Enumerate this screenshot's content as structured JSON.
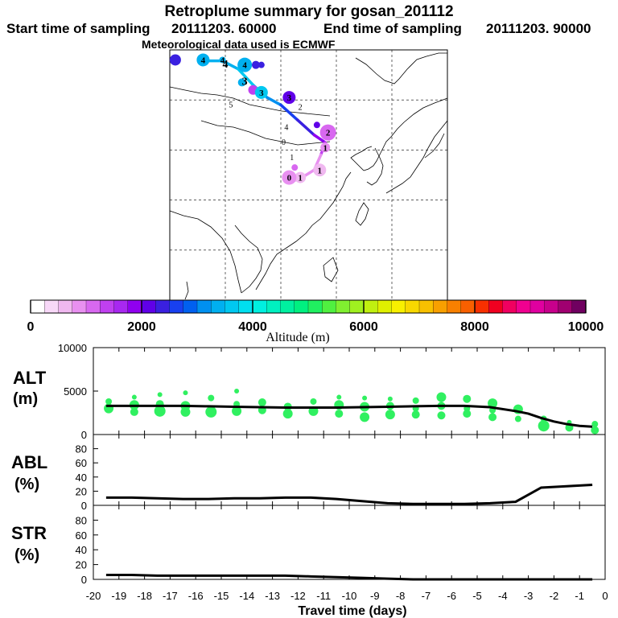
{
  "header": {
    "title": "Retroplume summary for gosan_201112",
    "start_label": "Start time of sampling",
    "start_value": "20111203. 60000",
    "end_label": "End time of sampling",
    "end_value": "20111203. 90000",
    "met_note": "Meteorological data used is ECMWF"
  },
  "colors": {
    "track_high": "#00c8f0",
    "track_mid": "#3a20e0",
    "track_low": "#c040f0",
    "marker_alt": "#30f060",
    "line": "#000000"
  },
  "chart_data": [
    {
      "id": "map",
      "type": "map-trajectory",
      "track": [
        {
          "lon": 101.0,
          "lat": 57.8,
          "alt": 3300
        },
        {
          "lon": 104.5,
          "lat": 57.8,
          "alt": 3200
        },
        {
          "lon": 107.3,
          "lat": 56.2,
          "alt": 3400
        },
        {
          "lon": 110.0,
          "lat": 53.0,
          "alt": 3700
        },
        {
          "lon": 112.5,
          "lat": 50.5,
          "alt": 3600
        },
        {
          "lon": 115.0,
          "lat": 49.0,
          "alt": 2700
        },
        {
          "lon": 118.0,
          "lat": 46.0,
          "alt": 2500
        },
        {
          "lon": 121.0,
          "lat": 43.0,
          "alt": 2200
        },
        {
          "lon": 123.0,
          "lat": 41.5,
          "alt": 1600
        },
        {
          "lon": 122.2,
          "lat": 39.0,
          "alt": 900
        },
        {
          "lon": 121.0,
          "lat": 36.0,
          "alt": 900
        },
        {
          "lon": 118.5,
          "lat": 34.3,
          "alt": 700
        },
        {
          "lon": 116.5,
          "lat": 33.5,
          "alt": 600
        }
      ],
      "markers": [
        {
          "lon": 96.0,
          "lat": 58.0,
          "alt": 2300,
          "size": 7,
          "label": ""
        },
        {
          "lon": 101.0,
          "lat": 58.0,
          "alt": 3300,
          "size": 8,
          "label": "4"
        },
        {
          "lon": 104.5,
          "lat": 58.0,
          "alt": 3300,
          "size": 4,
          "label": "4"
        },
        {
          "lon": 108.5,
          "lat": 57.0,
          "alt": 3300,
          "size": 9,
          "label": "4"
        },
        {
          "lon": 110.5,
          "lat": 57.0,
          "alt": 2400,
          "size": 5,
          "label": ""
        },
        {
          "lon": 111.5,
          "lat": 57.0,
          "alt": 2300,
          "size": 4,
          "label": ""
        },
        {
          "lon": 108.0,
          "lat": 53.5,
          "alt": 3400,
          "size": 5,
          "label": ""
        },
        {
          "lon": 110.0,
          "lat": 52.0,
          "alt": 1300,
          "size": 6,
          "label": ""
        },
        {
          "lon": 111.5,
          "lat": 51.5,
          "alt": 3600,
          "size": 8,
          "label": "3"
        },
        {
          "lon": 116.5,
          "lat": 50.5,
          "alt": 2200,
          "size": 8,
          "label": "3"
        },
        {
          "lon": 121.5,
          "lat": 45.0,
          "alt": 2100,
          "size": 4,
          "label": ""
        },
        {
          "lon": 123.5,
          "lat": 43.5,
          "alt": 1000,
          "size": 10,
          "label": "2"
        },
        {
          "lon": 123.0,
          "lat": 40.5,
          "alt": 900,
          "size": 6,
          "label": "1"
        },
        {
          "lon": 122.0,
          "lat": 36.0,
          "alt": 700,
          "size": 8,
          "label": "1"
        },
        {
          "lon": 118.5,
          "lat": 34.5,
          "alt": 700,
          "size": 7,
          "label": "1"
        },
        {
          "lon": 116.5,
          "lat": 34.5,
          "alt": 800,
          "size": 9,
          "label": "0"
        },
        {
          "lon": 117.5,
          "lat": 36.5,
          "alt": 1200,
          "size": 4,
          "label": ""
        }
      ],
      "labels": [
        {
          "lon": 105.0,
          "lat": 56.5,
          "text": "4",
          "bold": true
        },
        {
          "lon": 108.5,
          "lat": 53.0,
          "text": "3",
          "bold": true
        },
        {
          "lon": 106.0,
          "lat": 48.5,
          "text": "5",
          "bold": false
        },
        {
          "lon": 118.5,
          "lat": 48.0,
          "text": "2",
          "bold": false
        },
        {
          "lon": 116.0,
          "lat": 44.0,
          "text": "4",
          "bold": false
        },
        {
          "lon": 115.5,
          "lat": 41.0,
          "text": "0",
          "bold": false
        },
        {
          "lon": 117.0,
          "lat": 38.0,
          "text": "1",
          "bold": false
        }
      ]
    },
    {
      "id": "colorbar",
      "type": "colorbar",
      "title": "Altitude (m)",
      "range": [
        0,
        10000
      ],
      "tick_labels": [
        "0",
        "2000",
        "4000",
        "6000",
        "8000",
        "10000"
      ],
      "tick_values": [
        0,
        2000,
        4000,
        6000,
        8000,
        10000
      ],
      "colors": [
        "#ffffff",
        "#f8d8f8",
        "#f0b8f0",
        "#e890f0",
        "#d868f0",
        "#c040f0",
        "#a828f0",
        "#9000f0",
        "#6000e8",
        "#3a20e0",
        "#1840f0",
        "#0060f0",
        "#0090f0",
        "#00b0f0",
        "#00c8f0",
        "#00e0f0",
        "#00f0e0",
        "#00f0c0",
        "#00f0a0",
        "#00f080",
        "#20f060",
        "#50f040",
        "#80f030",
        "#a0f020",
        "#c0f010",
        "#e0f000",
        "#f8f000",
        "#f8d800",
        "#f8c000",
        "#f8a000",
        "#f88000",
        "#f86000",
        "#f83000",
        "#f00020",
        "#f00060",
        "#f00090",
        "#e000a0",
        "#c8008c",
        "#a00070",
        "#700060"
      ]
    },
    {
      "id": "alt",
      "type": "line-scatter",
      "ylabel_line1": "ALT",
      "ylabel_line2": "(m)",
      "ylim": [
        0,
        10000
      ],
      "xlim": [
        -20,
        0
      ],
      "ytick_labels": [
        "0",
        "5000",
        "10000"
      ],
      "ytick_values": [
        0,
        5000,
        10000
      ],
      "line_x": [
        -19.5,
        -18.5,
        -17.5,
        -16.5,
        -15.5,
        -14.5,
        -13.5,
        -12.5,
        -11.5,
        -10.5,
        -9.5,
        -8.5,
        -7.5,
        -6.5,
        -5.5,
        -4.5,
        -3.5,
        -3.0,
        -2.5,
        -2.0,
        -1.5,
        -1.0,
        -0.5
      ],
      "line_y": [
        3300,
        3300,
        3300,
        3300,
        3250,
        3200,
        3150,
        3100,
        3100,
        3100,
        3150,
        3200,
        3250,
        3300,
        3300,
        3150,
        2700,
        2400,
        1900,
        1500,
        1200,
        1000,
        900
      ],
      "points": [
        {
          "x": -19.4,
          "y": 3000,
          "r": 6
        },
        {
          "x": -19.4,
          "y": 3800,
          "r": 4
        },
        {
          "x": -18.4,
          "y": 2600,
          "r": 5
        },
        {
          "x": -18.4,
          "y": 3400,
          "r": 6
        },
        {
          "x": -18.4,
          "y": 4300,
          "r": 3
        },
        {
          "x": -17.4,
          "y": 2700,
          "r": 7
        },
        {
          "x": -17.4,
          "y": 3500,
          "r": 5
        },
        {
          "x": -17.4,
          "y": 4600,
          "r": 3
        },
        {
          "x": -16.4,
          "y": 2600,
          "r": 6
        },
        {
          "x": -16.4,
          "y": 3300,
          "r": 6
        },
        {
          "x": -16.4,
          "y": 4800,
          "r": 3
        },
        {
          "x": -15.4,
          "y": 2600,
          "r": 7
        },
        {
          "x": -15.4,
          "y": 4200,
          "r": 4
        },
        {
          "x": -14.4,
          "y": 2700,
          "r": 6
        },
        {
          "x": -14.4,
          "y": 3500,
          "r": 4
        },
        {
          "x": -14.4,
          "y": 5000,
          "r": 3
        },
        {
          "x": -13.4,
          "y": 2800,
          "r": 5
        },
        {
          "x": -13.4,
          "y": 3700,
          "r": 5
        },
        {
          "x": -12.4,
          "y": 2400,
          "r": 6
        },
        {
          "x": -12.4,
          "y": 3200,
          "r": 5
        },
        {
          "x": -11.4,
          "y": 2700,
          "r": 6
        },
        {
          "x": -11.4,
          "y": 3800,
          "r": 4
        },
        {
          "x": -10.4,
          "y": 2400,
          "r": 5
        },
        {
          "x": -10.4,
          "y": 3400,
          "r": 6
        },
        {
          "x": -10.4,
          "y": 4300,
          "r": 3
        },
        {
          "x": -9.4,
          "y": 2000,
          "r": 6
        },
        {
          "x": -9.4,
          "y": 3200,
          "r": 6
        },
        {
          "x": -9.4,
          "y": 4200,
          "r": 3
        },
        {
          "x": -8.4,
          "y": 2300,
          "r": 6
        },
        {
          "x": -8.4,
          "y": 3300,
          "r": 5
        },
        {
          "x": -8.4,
          "y": 4100,
          "r": 3
        },
        {
          "x": -7.4,
          "y": 2300,
          "r": 5
        },
        {
          "x": -7.4,
          "y": 3000,
          "r": 4
        },
        {
          "x": -7.4,
          "y": 3900,
          "r": 4
        },
        {
          "x": -6.4,
          "y": 2200,
          "r": 5
        },
        {
          "x": -6.4,
          "y": 3300,
          "r": 5
        },
        {
          "x": -6.4,
          "y": 4300,
          "r": 6
        },
        {
          "x": -5.4,
          "y": 2400,
          "r": 5
        },
        {
          "x": -5.4,
          "y": 3000,
          "r": 4
        },
        {
          "x": -5.4,
          "y": 4100,
          "r": 5
        },
        {
          "x": -4.4,
          "y": 2000,
          "r": 5
        },
        {
          "x": -4.4,
          "y": 2800,
          "r": 4
        },
        {
          "x": -4.4,
          "y": 3600,
          "r": 6
        },
        {
          "x": -3.4,
          "y": 1800,
          "r": 4
        },
        {
          "x": -3.4,
          "y": 2900,
          "r": 6
        },
        {
          "x": -2.4,
          "y": 1000,
          "r": 7
        },
        {
          "x": -2.4,
          "y": 1800,
          "r": 4
        },
        {
          "x": -1.4,
          "y": 800,
          "r": 5
        },
        {
          "x": -1.4,
          "y": 1400,
          "r": 3
        },
        {
          "x": -0.4,
          "y": 500,
          "r": 5
        },
        {
          "x": -0.4,
          "y": 1200,
          "r": 4
        }
      ]
    },
    {
      "id": "abl",
      "type": "line",
      "ylabel_line1": "ABL",
      "ylabel_line2": "(%)",
      "ylim": [
        0,
        100
      ],
      "xlim": [
        -20,
        0
      ],
      "ytick_labels": [
        "0",
        "20",
        "40",
        "60",
        "80"
      ],
      "ytick_values": [
        0,
        20,
        40,
        60,
        80
      ],
      "x": [
        -19.5,
        -18.5,
        -17.5,
        -16.5,
        -15.5,
        -14.5,
        -13.5,
        -12.5,
        -11.5,
        -10.5,
        -9.5,
        -8.5,
        -7.5,
        -6.5,
        -5.5,
        -4.5,
        -3.5,
        -3.0,
        -2.5,
        -2.0,
        -1.5,
        -1.0,
        -0.5
      ],
      "y": [
        11,
        11,
        10,
        9,
        9,
        10,
        10,
        11,
        11,
        9,
        6,
        3,
        2,
        2,
        2,
        3,
        5,
        15,
        25,
        26,
        27,
        28,
        29
      ]
    },
    {
      "id": "str",
      "type": "line",
      "ylabel_line1": "STR",
      "ylabel_line2": "(%)",
      "ylim": [
        0,
        100
      ],
      "xlim": [
        -20,
        0
      ],
      "ytick_labels": [
        "0",
        "20",
        "40",
        "60",
        "80"
      ],
      "ytick_values": [
        0,
        20,
        40,
        60,
        80
      ],
      "xlabel": "Travel time (days)",
      "xtick_labels": [
        "-20",
        "-19",
        "-18",
        "-17",
        "-16",
        "-15",
        "-14",
        "-13",
        "-12",
        "-11",
        "-10",
        "-9",
        "-8",
        "-7",
        "-6",
        "-5",
        "-4",
        "-3",
        "-2",
        "-1",
        "0"
      ],
      "x": [
        -19.5,
        -18.5,
        -17.5,
        -16.5,
        -15.5,
        -14.5,
        -13.5,
        -12.5,
        -11.5,
        -10.5,
        -9.5,
        -8.5,
        -7.5,
        -6.5,
        -5.5,
        -4.5,
        -3.5,
        -2.5,
        -1.5,
        -0.5
      ],
      "y": [
        6,
        6,
        5,
        5,
        5,
        5,
        5,
        5,
        4,
        3,
        2,
        1,
        0,
        0,
        0,
        0,
        0,
        0,
        0,
        0
      ]
    }
  ]
}
